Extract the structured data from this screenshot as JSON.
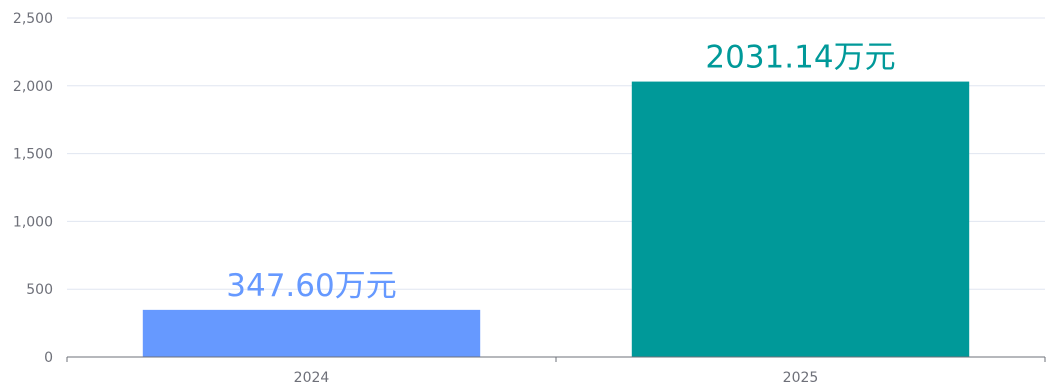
{
  "chart_data": {
    "type": "bar",
    "title": "",
    "xlabel": "",
    "ylabel": "",
    "categories": [
      "2024",
      "2025"
    ],
    "values": [
      347.6,
      2031.14
    ],
    "value_labels": [
      "347.60万元",
      "2031.14万元"
    ],
    "bar_colors": [
      "#6699ff",
      "#009999"
    ],
    "label_colors": [
      "#6699ff",
      "#009999"
    ],
    "ylim": [
      0,
      2500
    ],
    "yticks": [
      0,
      500,
      1000,
      1500,
      2000,
      2500
    ],
    "ytick_labels": [
      "0",
      "500",
      "1,000",
      "1,500",
      "2,000",
      "2,500"
    ],
    "grid": true,
    "legend": "none"
  }
}
